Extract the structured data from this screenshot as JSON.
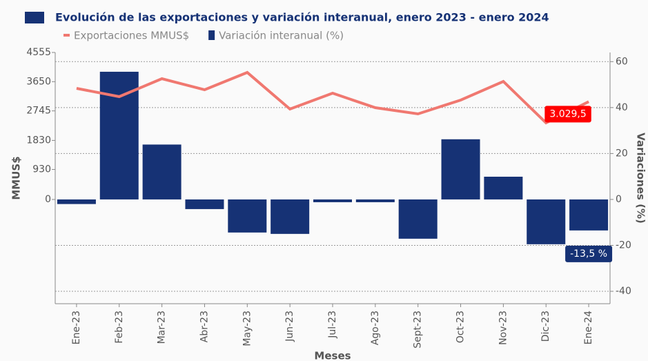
{
  "chart_data": {
    "type": "bar+line",
    "title": "Evolución de las exportaciones y variación interanual, enero 2023 - enero 2024",
    "x_label": "Meses",
    "y_label": "MMUS$",
    "y2_label": "Variaciones (%)",
    "categories": [
      "Ene-23",
      "Feb-23",
      "Mar-23",
      "Abr-23",
      "May-23",
      "Jun-23",
      "Jul-23",
      "Ago-23",
      "Sept-23",
      "Oct-23",
      "Nov-23",
      "Dic-23",
      "Ene-24"
    ],
    "series": [
      {
        "name": "Exportaciones MMUS$",
        "type": "line",
        "color": "#f07870",
        "axis": "y",
        "values": [
          3443,
          3186,
          3742,
          3400,
          3935,
          2801,
          3293,
          2844,
          2652,
          3080,
          3657,
          2374,
          3029.5
        ],
        "value_labels": [
          null,
          null,
          null,
          null,
          null,
          null,
          null,
          null,
          null,
          null,
          null,
          null,
          "3.029,5"
        ]
      },
      {
        "name": "Variación interanual (%)",
        "type": "bar",
        "color": "#163275",
        "axis": "y2",
        "values": [
          -2,
          55.6,
          23.9,
          -4.2,
          -14.4,
          -15,
          -1.2,
          -1.2,
          -17.1,
          26.2,
          9.9,
          -19.5,
          -13.5
        ],
        "value_labels": [
          null,
          null,
          null,
          null,
          null,
          null,
          null,
          null,
          null,
          null,
          null,
          null,
          "-13,5 %"
        ]
      }
    ],
    "ylim": [
      -3229,
      4555
    ],
    "yticks": [
      0,
      930,
      1830,
      2745,
      3650,
      4555
    ],
    "y2lim": [
      -45.4,
      64
    ],
    "y2ticks": [
      -40,
      -20,
      0,
      20,
      40,
      60
    ],
    "grid": true,
    "legend": "top"
  }
}
